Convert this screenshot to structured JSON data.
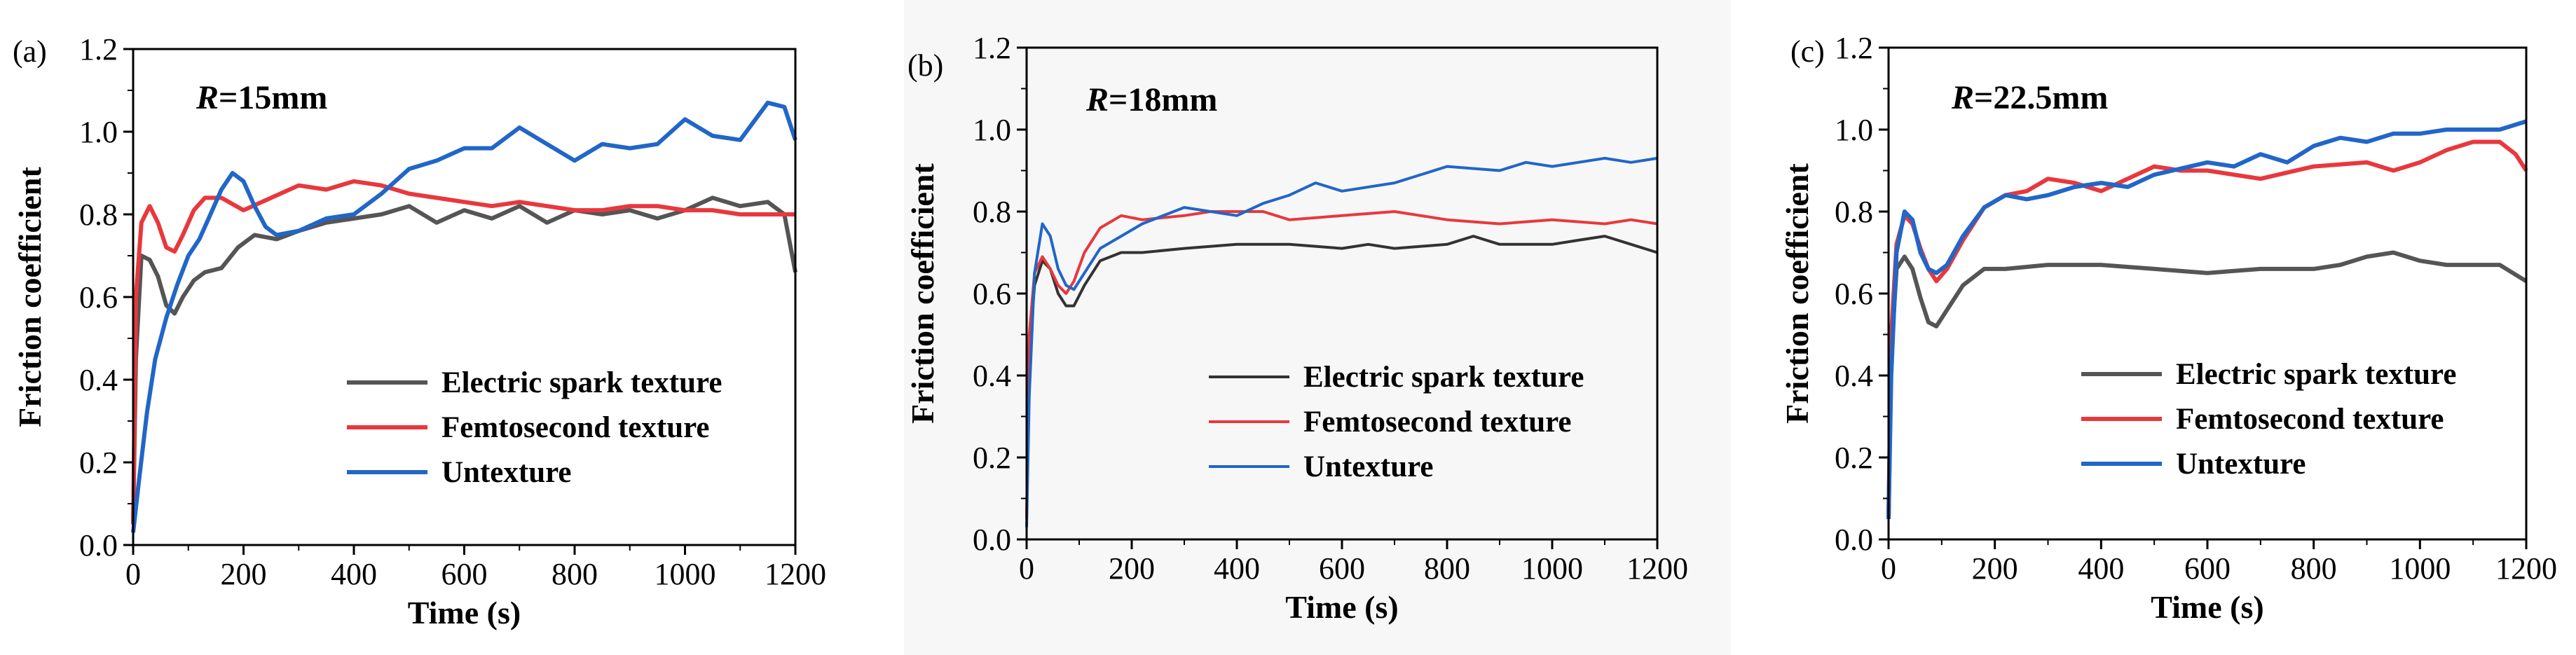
{
  "chart_data": [
    {
      "type": "line",
      "panel_label": "(a)",
      "annotation_prefix": "R",
      "annotation_value": "=15mm",
      "xlabel": "Time (s)",
      "ylabel": "Friction coefficient",
      "xlim": [
        0,
        1200
      ],
      "ylim": [
        0.0,
        1.2
      ],
      "xticks": [
        0,
        200,
        400,
        600,
        800,
        1000,
        1200
      ],
      "yticks": [
        0.0,
        0.2,
        0.4,
        0.6,
        0.8,
        1.0,
        1.2
      ],
      "xtick_labels": [
        "0",
        "200",
        "400",
        "600",
        "800",
        "1000",
        "1200"
      ],
      "ytick_labels": [
        "0.0",
        "0.2",
        "0.4",
        "0.6",
        "0.8",
        "1.0",
        "1.2"
      ],
      "legend_position": "bottom-right",
      "grid": false,
      "series": [
        {
          "name": "Electric spark texture",
          "color": "#555555",
          "x": [
            0,
            5,
            15,
            30,
            45,
            60,
            75,
            90,
            110,
            130,
            160,
            190,
            220,
            260,
            300,
            350,
            400,
            450,
            500,
            550,
            600,
            650,
            700,
            750,
            800,
            850,
            900,
            950,
            1000,
            1050,
            1100,
            1150,
            1180,
            1200
          ],
          "y": [
            0.05,
            0.45,
            0.7,
            0.69,
            0.65,
            0.58,
            0.56,
            0.6,
            0.64,
            0.66,
            0.67,
            0.72,
            0.75,
            0.74,
            0.76,
            0.78,
            0.79,
            0.8,
            0.82,
            0.78,
            0.81,
            0.79,
            0.82,
            0.78,
            0.81,
            0.8,
            0.81,
            0.79,
            0.81,
            0.84,
            0.82,
            0.83,
            0.8,
            0.66
          ]
        },
        {
          "name": "Femtosecond texture",
          "color": "#e8383d",
          "x": [
            0,
            5,
            15,
            30,
            45,
            60,
            75,
            90,
            110,
            130,
            160,
            200,
            250,
            300,
            350,
            400,
            450,
            500,
            550,
            600,
            650,
            700,
            750,
            800,
            850,
            900,
            950,
            1000,
            1050,
            1100,
            1150,
            1200
          ],
          "y": [
            0.05,
            0.6,
            0.78,
            0.82,
            0.78,
            0.72,
            0.71,
            0.75,
            0.81,
            0.84,
            0.84,
            0.81,
            0.84,
            0.87,
            0.86,
            0.88,
            0.87,
            0.85,
            0.84,
            0.83,
            0.82,
            0.83,
            0.82,
            0.81,
            0.81,
            0.82,
            0.82,
            0.81,
            0.81,
            0.8,
            0.8,
            0.8
          ]
        },
        {
          "name": "Untexture",
          "color": "#2166c8",
          "x": [
            0,
            10,
            25,
            40,
            60,
            80,
            100,
            120,
            140,
            160,
            180,
            200,
            220,
            240,
            260,
            300,
            350,
            400,
            450,
            500,
            550,
            600,
            650,
            700,
            750,
            800,
            850,
            900,
            950,
            1000,
            1050,
            1100,
            1150,
            1180,
            1200
          ],
          "y": [
            0.03,
            0.15,
            0.32,
            0.45,
            0.55,
            0.63,
            0.7,
            0.74,
            0.8,
            0.86,
            0.9,
            0.88,
            0.82,
            0.77,
            0.75,
            0.76,
            0.79,
            0.8,
            0.85,
            0.91,
            0.93,
            0.96,
            0.96,
            1.01,
            0.97,
            0.93,
            0.97,
            0.96,
            0.97,
            1.03,
            0.99,
            0.98,
            1.07,
            1.06,
            0.98
          ]
        }
      ]
    },
    {
      "type": "line",
      "panel_label": "(b)",
      "annotation_prefix": "R",
      "annotation_value": "=18mm",
      "xlabel": "Time (s)",
      "ylabel": "Friction coefficient",
      "xlim": [
        0,
        1200
      ],
      "ylim": [
        0.0,
        1.2
      ],
      "xticks": [
        0,
        200,
        400,
        600,
        800,
        1000,
        1200
      ],
      "yticks": [
        0.0,
        0.2,
        0.4,
        0.6,
        0.8,
        1.0,
        1.2
      ],
      "xtick_labels": [
        "0",
        "200",
        "400",
        "600",
        "800",
        "1000",
        "1200"
      ],
      "ytick_labels": [
        "0.0",
        "0.2",
        "0.4",
        "0.6",
        "0.8",
        "1.0",
        "1.2"
      ],
      "legend_position": "bottom-right",
      "grid": false,
      "series": [
        {
          "name": "Electric spark texture",
          "color": "#333333",
          "x": [
            0,
            5,
            15,
            30,
            45,
            60,
            75,
            90,
            110,
            140,
            180,
            220,
            300,
            400,
            500,
            600,
            650,
            700,
            800,
            850,
            900,
            1000,
            1050,
            1100,
            1150,
            1200
          ],
          "y": [
            0.05,
            0.45,
            0.62,
            0.68,
            0.66,
            0.6,
            0.57,
            0.57,
            0.62,
            0.68,
            0.7,
            0.7,
            0.71,
            0.72,
            0.72,
            0.71,
            0.72,
            0.71,
            0.72,
            0.74,
            0.72,
            0.72,
            0.73,
            0.74,
            0.72,
            0.7
          ]
        },
        {
          "name": "Femtosecond texture",
          "color": "#e8383d",
          "x": [
            0,
            5,
            15,
            30,
            45,
            60,
            75,
            90,
            110,
            140,
            180,
            220,
            300,
            350,
            400,
            450,
            500,
            600,
            700,
            750,
            800,
            900,
            1000,
            1100,
            1150,
            1200
          ],
          "y": [
            0.05,
            0.5,
            0.65,
            0.69,
            0.66,
            0.62,
            0.6,
            0.63,
            0.7,
            0.76,
            0.79,
            0.78,
            0.79,
            0.8,
            0.8,
            0.8,
            0.78,
            0.79,
            0.8,
            0.79,
            0.78,
            0.77,
            0.78,
            0.77,
            0.78,
            0.77
          ]
        },
        {
          "name": "Untexture",
          "color": "#2166c8",
          "x": [
            0,
            5,
            15,
            30,
            45,
            60,
            75,
            90,
            110,
            140,
            180,
            220,
            260,
            300,
            400,
            450,
            500,
            550,
            600,
            700,
            750,
            800,
            900,
            950,
            1000,
            1100,
            1150,
            1200
          ],
          "y": [
            0.03,
            0.35,
            0.65,
            0.77,
            0.74,
            0.66,
            0.62,
            0.61,
            0.65,
            0.71,
            0.74,
            0.77,
            0.79,
            0.81,
            0.79,
            0.82,
            0.84,
            0.87,
            0.85,
            0.87,
            0.89,
            0.91,
            0.9,
            0.92,
            0.91,
            0.93,
            0.92,
            0.93
          ]
        }
      ]
    },
    {
      "type": "line",
      "panel_label": "(c)",
      "annotation_prefix": "R",
      "annotation_value": "=22.5mm",
      "xlabel": "Time (s)",
      "ylabel": "Friction coefficient",
      "xlim": [
        0,
        1200
      ],
      "ylim": [
        0.0,
        1.2
      ],
      "xticks": [
        0,
        200,
        400,
        600,
        800,
        1000,
        1200
      ],
      "yticks": [
        0.0,
        0.2,
        0.4,
        0.6,
        0.8,
        1.0,
        1.2
      ],
      "xtick_labels": [
        "0",
        "200",
        "400",
        "600",
        "800",
        "1000",
        "1200"
      ],
      "ytick_labels": [
        "0.0",
        "0.2",
        "0.4",
        "0.6",
        "0.8",
        "1.0",
        "1.2"
      ],
      "legend_position": "bottom-right",
      "grid": false,
      "series": [
        {
          "name": "Electric spark texture",
          "color": "#555555",
          "x": [
            0,
            5,
            15,
            30,
            45,
            60,
            75,
            90,
            110,
            140,
            180,
            220,
            300,
            400,
            500,
            600,
            700,
            800,
            850,
            900,
            950,
            1000,
            1050,
            1100,
            1150,
            1200
          ],
          "y": [
            0.05,
            0.45,
            0.66,
            0.69,
            0.66,
            0.59,
            0.53,
            0.52,
            0.56,
            0.62,
            0.66,
            0.66,
            0.67,
            0.67,
            0.66,
            0.65,
            0.66,
            0.66,
            0.67,
            0.69,
            0.7,
            0.68,
            0.67,
            0.67,
            0.67,
            0.63
          ]
        },
        {
          "name": "Femtosecond texture",
          "color": "#e8383d",
          "x": [
            0,
            5,
            15,
            30,
            45,
            60,
            75,
            90,
            110,
            140,
            180,
            220,
            260,
            300,
            350,
            400,
            450,
            500,
            550,
            600,
            700,
            800,
            900,
            950,
            1000,
            1050,
            1100,
            1150,
            1180,
            1200
          ],
          "y": [
            0.05,
            0.5,
            0.72,
            0.79,
            0.77,
            0.71,
            0.66,
            0.63,
            0.66,
            0.73,
            0.81,
            0.84,
            0.85,
            0.88,
            0.87,
            0.85,
            0.88,
            0.91,
            0.9,
            0.9,
            0.88,
            0.91,
            0.92,
            0.9,
            0.92,
            0.95,
            0.97,
            0.97,
            0.94,
            0.9
          ]
        },
        {
          "name": "Untexture",
          "color": "#2166c8",
          "x": [
            0,
            5,
            15,
            30,
            45,
            60,
            75,
            90,
            110,
            140,
            180,
            220,
            260,
            300,
            350,
            400,
            450,
            500,
            600,
            650,
            700,
            750,
            800,
            850,
            900,
            950,
            1000,
            1050,
            1100,
            1150,
            1200
          ],
          "y": [
            0.05,
            0.4,
            0.7,
            0.8,
            0.78,
            0.7,
            0.66,
            0.65,
            0.67,
            0.74,
            0.81,
            0.84,
            0.83,
            0.84,
            0.86,
            0.87,
            0.86,
            0.89,
            0.92,
            0.91,
            0.94,
            0.92,
            0.96,
            0.98,
            0.97,
            0.99,
            0.99,
            1.0,
            1.0,
            1.0,
            1.02
          ]
        }
      ]
    }
  ]
}
